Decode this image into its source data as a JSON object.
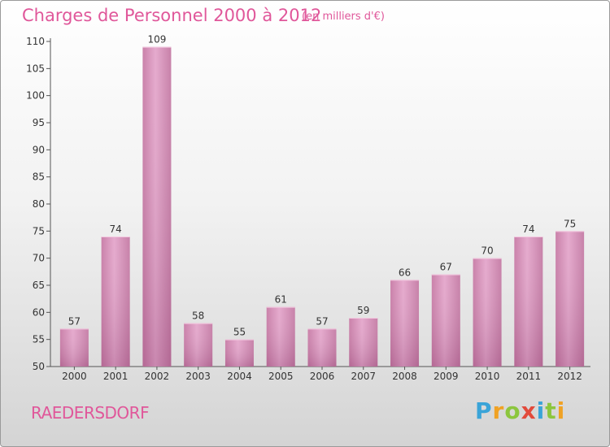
{
  "chart_data": {
    "type": "bar",
    "title": "Charges de Personnel 2000 à 2012",
    "subtitle": "(en milliers d'€)",
    "categories": [
      "2000",
      "2001",
      "2002",
      "2003",
      "2004",
      "2005",
      "2006",
      "2007",
      "2008",
      "2009",
      "2010",
      "2011",
      "2012"
    ],
    "values": [
      57,
      74,
      109,
      58,
      55,
      61,
      57,
      59,
      66,
      67,
      70,
      74,
      75
    ],
    "ylim": [
      50,
      110
    ],
    "yticks": [
      50,
      55,
      60,
      65,
      70,
      75,
      80,
      85,
      90,
      95,
      100,
      105,
      110
    ],
    "xlabel": "",
    "ylabel": "",
    "grid": false,
    "legend": "none",
    "bar_color": "#d98fb9"
  },
  "footer": {
    "town": "RAEDERSDORF",
    "brand_letters": [
      {
        "ch": "P",
        "color": "#3aa4d8"
      },
      {
        "ch": "r",
        "color": "#f0a224"
      },
      {
        "ch": "o",
        "color": "#8cc63e"
      },
      {
        "ch": "x",
        "color": "#e24a3b"
      },
      {
        "ch": "i",
        "color": "#3aa4d8"
      },
      {
        "ch": "t",
        "color": "#8cc63e"
      },
      {
        "ch": "i",
        "color": "#f0a224"
      }
    ]
  },
  "colors": {
    "accent": "#e0579a"
  }
}
